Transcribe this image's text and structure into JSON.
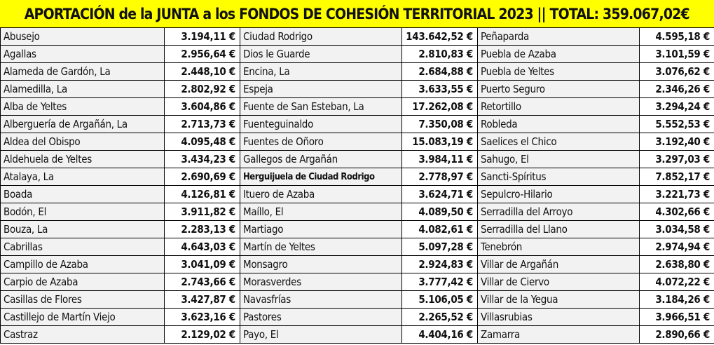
{
  "title": "APORTACIÓN de la JUNTA a los FONDOS DE COHESIÓN TERRITORIAL 2023 || TOTAL: 359.067,02€",
  "colors": {
    "title_background": "#ffff00",
    "name_cell_background": "#f2f2f2",
    "amount_cell_background": "#ffffff",
    "grid_lines": "#000000"
  },
  "columns": [
    {
      "rows": [
        {
          "name": "Abusejo",
          "amount": "3.194,11 €"
        },
        {
          "name": "Agallas",
          "amount": "2.956,64 €"
        },
        {
          "name": "Alameda de Gardón, La",
          "amount": "2.448,10 €"
        },
        {
          "name": "Alamedilla, La",
          "amount": "2.802,92 €"
        },
        {
          "name": "Alba de Yeltes",
          "amount": "3.604,86 €"
        },
        {
          "name": "Alberguería de Argañán, La",
          "amount": "2.713,73 €"
        },
        {
          "name": "Aldea del Obispo",
          "amount": "4.095,48 €"
        },
        {
          "name": "Aldehuela de Yeltes",
          "amount": "3.434,23 €"
        },
        {
          "name": "Atalaya, La",
          "amount": "2.690,69 €"
        },
        {
          "name": "Boada",
          "amount": "4.126,81 €"
        },
        {
          "name": "Bodón, El",
          "amount": "3.911,82 €"
        },
        {
          "name": "Bouza, La",
          "amount": "2.283,13 €"
        },
        {
          "name": "Cabrillas",
          "amount": "4.643,03 €"
        },
        {
          "name": "Campillo de Azaba",
          "amount": "3.041,09 €"
        },
        {
          "name": "Carpio de Azaba",
          "amount": "2.743,66 €"
        },
        {
          "name": "Casillas de Flores",
          "amount": "3.427,87 €"
        },
        {
          "name": "Castillejo de Martín Viejo",
          "amount": "3.623,16 €"
        },
        {
          "name": "Castraz",
          "amount": "2.129,02 €"
        }
      ]
    },
    {
      "rows": [
        {
          "name": "Ciudad Rodrigo",
          "amount": "143.642,52 €"
        },
        {
          "name": "Dios le Guarde",
          "amount": "2.810,83 €"
        },
        {
          "name": "Encina, La",
          "amount": "2.684,88 €"
        },
        {
          "name": "Espeja",
          "amount": "3.633,55 €"
        },
        {
          "name": "Fuente de San Esteban, La",
          "amount": "17.262,08 €"
        },
        {
          "name": "Fuenteguinaldo",
          "amount": "7.350,08 €"
        },
        {
          "name": "Fuentes de Oñoro",
          "amount": "15.083,19 €"
        },
        {
          "name": "Gallegos de Argañán",
          "amount": "3.984,11 €"
        },
        {
          "name": "Herguijuela de Ciudad Rodrigo",
          "amount": "2.778,97 €"
        },
        {
          "name": "Ituero de Azaba",
          "amount": "3.624,71 €"
        },
        {
          "name": "Maíllo, El",
          "amount": "4.089,50 €"
        },
        {
          "name": "Martiago",
          "amount": "4.082,61 €"
        },
        {
          "name": "Martín de Yeltes",
          "amount": "5.097,28 €"
        },
        {
          "name": "Monsagro",
          "amount": "2.924,83 €"
        },
        {
          "name": "Morasverdes",
          "amount": "3.777,42 €"
        },
        {
          "name": "Navasfrías",
          "amount": "5.106,05 €"
        },
        {
          "name": "Pastores",
          "amount": "2.265,52 €"
        },
        {
          "name": "Payo, El",
          "amount": "4.404,16 €"
        }
      ]
    },
    {
      "rows": [
        {
          "name": "Peñaparda",
          "amount": "4.595,18 €"
        },
        {
          "name": "Puebla de Azaba",
          "amount": "3.101,59 €"
        },
        {
          "name": "Puebla de Yeltes",
          "amount": "3.076,62 €"
        },
        {
          "name": "Puerto Seguro",
          "amount": "2.346,26 €"
        },
        {
          "name": "Retortillo",
          "amount": "3.294,24 €"
        },
        {
          "name": "Robleda",
          "amount": "5.552,53 €"
        },
        {
          "name": "Saelices el Chico",
          "amount": "3.192,40 €"
        },
        {
          "name": "Sahugo, El",
          "amount": "3.297,03 €"
        },
        {
          "name": "Sancti-Spíritus",
          "amount": "7.852,17 €"
        },
        {
          "name": "Sepulcro-Hilario",
          "amount": "3.221,73 €"
        },
        {
          "name": "Serradilla del Arroyo",
          "amount": "4.302,66 €"
        },
        {
          "name": "Serradilla del Llano",
          "amount": "3.034,58 €"
        },
        {
          "name": "Tenebrón",
          "amount": "2.974,94 €"
        },
        {
          "name": "Villar de Argañán",
          "amount": "2.638,80 €"
        },
        {
          "name": "Villar de Ciervo",
          "amount": "4.072,22 €"
        },
        {
          "name": "Villar de la Yegua",
          "amount": "3.184,26 €"
        },
        {
          "name": "Villasrubias",
          "amount": "3.966,51 €"
        },
        {
          "name": "Zamarra",
          "amount": "2.890,66 €"
        }
      ]
    }
  ]
}
